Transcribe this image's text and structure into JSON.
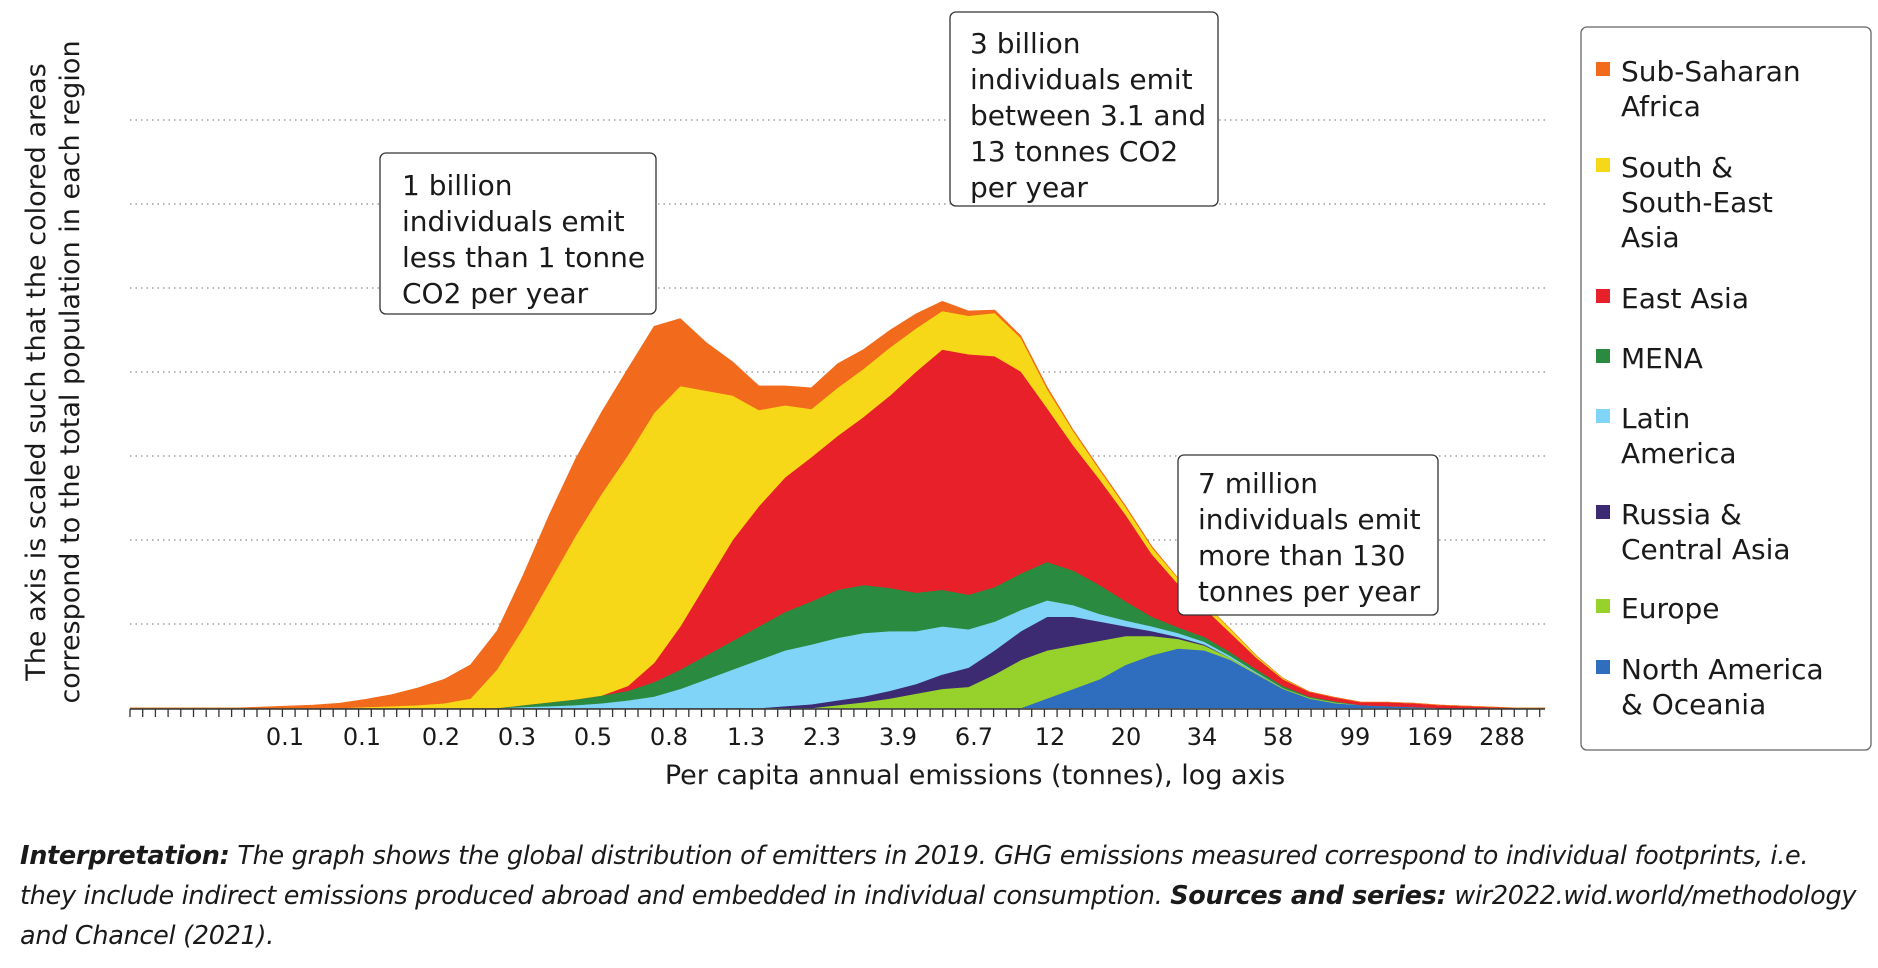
{
  "chart_data": {
    "type": "area",
    "stacked": true,
    "title": "",
    "xlabel": "Per capita annual emissions (tonnes), log axis",
    "ylabel_lines": [
      "The axis is scaled such that the colored areas",
      "correspond to the total population in each region"
    ],
    "x_ticks": [
      "0.1",
      "0.1",
      "0.2",
      "0.3",
      "0.5",
      "0.8",
      "1.3",
      "2.3",
      "3.9",
      "6.7",
      "12",
      "20",
      "34",
      "58",
      "99",
      "169",
      "288"
    ],
    "ylim": [
      0,
      7
    ],
    "grid": "horizontal dotted",
    "legend_position": "right",
    "series": [
      {
        "name": "North America & Oceania",
        "color": "#2f6ebf",
        "values": [
          0,
          0,
          0,
          0,
          0,
          0,
          0,
          0,
          0,
          0,
          0,
          0,
          0,
          0,
          0,
          0,
          0,
          0,
          0,
          0,
          0,
          0,
          0,
          0,
          0,
          0,
          0,
          0,
          0,
          0,
          0,
          0,
          0,
          0,
          0,
          0.1,
          0.2,
          0.3,
          0.45,
          0.55,
          0.62,
          0.6,
          0.5,
          0.35,
          0.2,
          0.1,
          0.05,
          0.03,
          0.02,
          0.01,
          0,
          0,
          0,
          0,
          0
        ]
      },
      {
        "name": "Europe",
        "color": "#97d12b",
        "values": [
          0,
          0,
          0,
          0,
          0,
          0,
          0,
          0,
          0,
          0,
          0,
          0,
          0,
          0,
          0,
          0,
          0,
          0,
          0,
          0,
          0,
          0,
          0,
          0,
          0,
          0,
          0,
          0.03,
          0.06,
          0.1,
          0.15,
          0.2,
          0.22,
          0.35,
          0.5,
          0.5,
          0.45,
          0.4,
          0.3,
          0.2,
          0.1,
          0.05,
          0.02,
          0.01,
          0.01,
          0.01,
          0.01,
          0,
          0,
          0,
          0,
          0,
          0,
          0,
          0
        ]
      },
      {
        "name": "Russia & Central Asia",
        "color": "#3c2a73",
        "values": [
          0,
          0,
          0,
          0,
          0,
          0,
          0,
          0,
          0,
          0,
          0,
          0,
          0,
          0,
          0,
          0,
          0,
          0,
          0,
          0,
          0,
          0,
          0,
          0,
          0,
          0.02,
          0.04,
          0.05,
          0.06,
          0.08,
          0.1,
          0.15,
          0.2,
          0.25,
          0.3,
          0.35,
          0.3,
          0.2,
          0.1,
          0.05,
          0.02,
          0.01,
          0,
          0,
          0,
          0,
          0,
          0,
          0,
          0,
          0,
          0,
          0,
          0,
          0
        ]
      },
      {
        "name": "Latin America",
        "color": "#7fd4f7",
        "values": [
          0,
          0,
          0,
          0,
          0,
          0,
          0,
          0,
          0,
          0,
          0,
          0,
          0,
          0,
          0,
          0.01,
          0.02,
          0.03,
          0.05,
          0.08,
          0.12,
          0.2,
          0.3,
          0.4,
          0.5,
          0.58,
          0.62,
          0.65,
          0.66,
          0.62,
          0.55,
          0.5,
          0.4,
          0.3,
          0.22,
          0.17,
          0.12,
          0.08,
          0.06,
          0.05,
          0.04,
          0.03,
          0.02,
          0.01,
          0,
          0,
          0,
          0,
          0,
          0,
          0,
          0,
          0,
          0,
          0
        ]
      },
      {
        "name": "MENA",
        "color": "#2a8a3f",
        "values": [
          0,
          0,
          0,
          0,
          0,
          0,
          0,
          0,
          0,
          0,
          0,
          0,
          0,
          0,
          0,
          0.02,
          0.04,
          0.06,
          0.08,
          0.1,
          0.15,
          0.2,
          0.25,
          0.3,
          0.35,
          0.4,
          0.45,
          0.5,
          0.5,
          0.45,
          0.4,
          0.38,
          0.36,
          0.36,
          0.38,
          0.4,
          0.36,
          0.3,
          0.2,
          0.1,
          0.06,
          0.05,
          0.04,
          0.03,
          0.02,
          0.01,
          0.01,
          0,
          0,
          0,
          0,
          0,
          0,
          0,
          0
        ]
      },
      {
        "name": "East Asia",
        "color": "#e8202a",
        "values": [
          0,
          0,
          0,
          0,
          0,
          0,
          0,
          0,
          0,
          0,
          0,
          0,
          0,
          0,
          0,
          0,
          0,
          0,
          0,
          0.05,
          0.2,
          0.45,
          0.75,
          1.05,
          1.25,
          1.4,
          1.5,
          1.6,
          1.75,
          2.0,
          2.3,
          2.5,
          2.5,
          2.4,
          2.1,
          1.6,
          1.3,
          1.1,
          0.9,
          0.65,
          0.45,
          0.3,
          0.2,
          0.12,
          0.07,
          0.05,
          0.04,
          0.03,
          0.04,
          0.04,
          0.03,
          0.02,
          0.01,
          0,
          0
        ]
      },
      {
        "name": "South & South-East Asia",
        "color": "#f7d818",
        "values": [
          0,
          0,
          0,
          0,
          0,
          0,
          0,
          0,
          0,
          0.01,
          0.02,
          0.03,
          0.05,
          0.1,
          0.4,
          0.8,
          1.25,
          1.7,
          2.1,
          2.4,
          2.6,
          2.5,
          2.0,
          1.5,
          1.0,
          0.75,
          0.5,
          0.5,
          0.5,
          0.5,
          0.45,
          0.4,
          0.4,
          0.45,
          0.35,
          0.2,
          0.15,
          0.1,
          0.08,
          0.07,
          0.06,
          0.05,
          0.04,
          0.02,
          0.01,
          0,
          0,
          0,
          0,
          0,
          0,
          0,
          0,
          0,
          0
        ]
      },
      {
        "name": "Sub-Saharan Africa",
        "color": "#f26a1b",
        "values": [
          0,
          0,
          0,
          0,
          0,
          0.01,
          0.02,
          0.03,
          0.05,
          0.08,
          0.12,
          0.18,
          0.25,
          0.35,
          0.4,
          0.55,
          0.7,
          0.8,
          0.85,
          0.9,
          0.9,
          0.7,
          0.5,
          0.35,
          0.25,
          0.2,
          0.22,
          0.25,
          0.2,
          0.18,
          0.15,
          0.1,
          0.05,
          0.03,
          0.02,
          0.02,
          0.01,
          0.01,
          0.01,
          0.01,
          0,
          0,
          0,
          0,
          0,
          0,
          0,
          0,
          0,
          0,
          0,
          0,
          0,
          0,
          0
        ]
      }
    ],
    "annotations": [
      {
        "lines": [
          "1 billion",
          "individuals emit",
          "less than 1 tonne",
          "CO2 per year"
        ]
      },
      {
        "lines": [
          "3 billion",
          "individuals emit",
          "between 3.1 and",
          "13 tonnes CO2",
          "per year"
        ]
      },
      {
        "lines": [
          "7 million",
          "individuals emit",
          "more than 130",
          "tonnes per year"
        ]
      }
    ]
  },
  "legend": [
    {
      "lines": [
        "Sub-Saharan",
        "Africa"
      ],
      "color": "#f26a1b"
    },
    {
      "lines": [
        "South &",
        "South-East",
        "Asia"
      ],
      "color": "#f7d818"
    },
    {
      "lines": [
        "East Asia"
      ],
      "color": "#e8202a"
    },
    {
      "lines": [
        "MENA"
      ],
      "color": "#2a8a3f"
    },
    {
      "lines": [
        "Latin",
        "America"
      ],
      "color": "#7fd4f7"
    },
    {
      "lines": [
        "Russia &",
        "Central Asia"
      ],
      "color": "#3c2a73"
    },
    {
      "lines": [
        "Europe"
      ],
      "color": "#97d12b"
    },
    {
      "lines": [
        "North America",
        "& Oceania"
      ],
      "color": "#2f6ebf"
    }
  ],
  "note": {
    "interpretation_label": "Interpretation:",
    "interpretation_text": " The graph shows the global distribution of emitters in 2019. GHG emissions measured correspond to individual footprints, i.e. they include indirect emissions produced abroad and embedded in individual consumption. ",
    "sources_label": "Sources and series:",
    "sources_text": " wir2022.wid.world/methodology and Chancel (2021)."
  }
}
